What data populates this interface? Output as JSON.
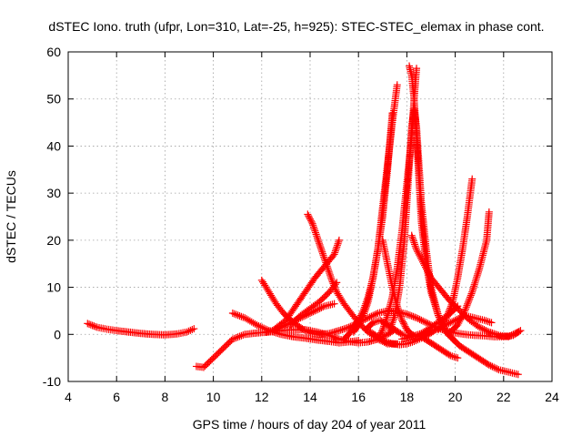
{
  "chart_data": {
    "type": "scatter",
    "title": "dSTEC Iono. truth (ufpr, Lon=310, Lat=-25, h=925): STEC-STEC_elemax in phase cont.",
    "xlabel": "GPS time / hours of day 204 of year 2011",
    "ylabel": "dSTEC  / TECUs",
    "xlim": [
      4,
      24
    ],
    "ylim": [
      -10,
      60
    ],
    "xticks": [
      "4",
      "6",
      "8",
      "10",
      "12",
      "14",
      "16",
      "18",
      "20",
      "22",
      "24"
    ],
    "yticks": [
      "-10",
      "0",
      "10",
      "20",
      "30",
      "40",
      "50",
      "60"
    ],
    "grid": true,
    "marker": "+",
    "color": "#ff0000",
    "series": [
      {
        "x": [
          4.8,
          5.2,
          5.6,
          6.0,
          6.5,
          7.0,
          7.5,
          8.0,
          8.5,
          8.9,
          9.2
        ],
        "y": [
          2.3,
          1.5,
          1.1,
          0.8,
          0.5,
          0.2,
          0.0,
          -0.1,
          0.1,
          0.5,
          1.2
        ]
      },
      {
        "x": [
          9.3,
          9.6,
          10.0,
          10.4,
          10.8,
          11.3,
          11.8,
          12.3,
          12.8,
          13.3,
          13.8,
          14.3,
          14.8,
          15.2,
          15.6,
          16.0,
          16.4,
          16.8,
          17.2,
          17.5
        ],
        "y": [
          -6.8,
          -7.0,
          -5.0,
          -3.0,
          -1.0,
          0.0,
          0.3,
          0.5,
          0.8,
          1.0,
          1.0,
          0.5,
          -0.2,
          -1.0,
          -1.5,
          -1.8,
          -1.6,
          -1.0,
          0.0,
          1.0
        ]
      },
      {
        "x": [
          10.8,
          11.3,
          11.8,
          12.3,
          12.8,
          13.3,
          13.8,
          14.3,
          14.8,
          15.2,
          15.6,
          16.0
        ],
        "y": [
          4.5,
          3.5,
          2.0,
          0.8,
          0.0,
          -0.5,
          -0.8,
          -1.2,
          -1.5,
          -1.8,
          -1.6,
          -1.3
        ]
      },
      {
        "x": [
          12.0,
          12.3,
          12.6,
          12.9,
          13.2,
          13.5,
          13.8,
          14.1,
          14.4,
          14.8,
          15.2,
          15.6,
          16.0,
          16.4,
          16.8,
          17.2,
          17.6,
          18.0,
          18.4,
          18.8,
          19.2,
          19.6,
          20.0,
          20.4,
          20.8,
          21.2,
          21.6,
          22.0,
          22.4,
          22.7
        ],
        "y": [
          11.5,
          9.0,
          6.5,
          4.5,
          3.0,
          1.8,
          0.8,
          0.2,
          0.0,
          0.2,
          0.8,
          1.5,
          2.5,
          3.5,
          4.5,
          5.0,
          4.8,
          4.3,
          3.5,
          2.5,
          1.5,
          0.8,
          0.3,
          0.0,
          -0.2,
          -0.3,
          -0.5,
          -0.5,
          -0.2,
          0.8
        ]
      },
      {
        "x": [
          12.2,
          12.6,
          13.0,
          13.4,
          13.8,
          14.2,
          14.6,
          15.0
        ],
        "y": [
          0.5,
          1.0,
          2.0,
          3.0,
          4.0,
          5.0,
          6.0,
          6.5
        ]
      },
      {
        "x": [
          12.5,
          13.0,
          13.4,
          13.8,
          14.2,
          14.6,
          15.0,
          15.2
        ],
        "y": [
          1.0,
          3.0,
          6.0,
          9.0,
          12.0,
          14.5,
          17.0,
          20.0
        ]
      },
      {
        "x": [
          13.2,
          13.6,
          14.0,
          14.4,
          14.8,
          15.1
        ],
        "y": [
          2.0,
          4.0,
          5.5,
          7.0,
          9.0,
          11.0
        ]
      },
      {
        "x": [
          13.9,
          14.1,
          14.3,
          14.5,
          14.7,
          14.9,
          15.1,
          15.4,
          15.7,
          16.0,
          16.4,
          16.8,
          17.2,
          17.6
        ],
        "y": [
          25.5,
          23.5,
          20.5,
          17.5,
          14.5,
          11.5,
          9.0,
          6.5,
          4.5,
          2.5,
          0.5,
          -1.0,
          -2.0,
          -2.0
        ]
      },
      {
        "x": [
          15.8,
          16.0,
          16.2,
          16.4,
          16.6,
          16.8,
          17.0,
          17.2,
          17.4,
          17.6
        ],
        "y": [
          0.5,
          2.0,
          4.0,
          7.0,
          12.0,
          18.0,
          27.0,
          36.0,
          45.0,
          53.0
        ]
      },
      {
        "x": [
          15.4,
          15.6,
          15.8,
          16.0,
          16.2,
          16.4,
          16.6,
          16.8,
          17.0,
          17.2,
          17.4
        ],
        "y": [
          -1.0,
          0.0,
          1.5,
          3.0,
          5.0,
          8.0,
          12.0,
          18.0,
          25.0,
          35.0,
          47.0
        ]
      },
      {
        "x": [
          16.3,
          16.6,
          16.9,
          17.2,
          17.5,
          17.8,
          18.1,
          18.4,
          18.7,
          19.0
        ],
        "y": [
          1.0,
          2.5,
          3.0,
          2.0,
          1.0,
          0.0,
          -0.5,
          -0.5,
          0.0,
          1.0
        ]
      },
      {
        "x": [
          16.5,
          16.8,
          17.1,
          17.4,
          17.7,
          18.0,
          18.3,
          18.6,
          18.9,
          19.2,
          19.6,
          20.0,
          20.4,
          20.8,
          21.2,
          21.5
        ],
        "y": [
          0.5,
          -0.5,
          -1.5,
          -2.0,
          -2.2,
          -2.0,
          -1.5,
          -0.8,
          0.0,
          1.0,
          2.0,
          3.0,
          4.0,
          3.5,
          3.0,
          2.5
        ]
      },
      {
        "x": [
          17.0,
          17.2,
          17.4,
          17.6,
          17.8,
          18.0,
          18.2,
          18.4
        ],
        "y": [
          20.0,
          15.0,
          10.0,
          6.0,
          3.0,
          1.0,
          0.0,
          -0.5
        ]
      },
      {
        "x": [
          17.3,
          17.5,
          17.7,
          17.9,
          18.0,
          18.1,
          18.2,
          18.3,
          18.4,
          18.5,
          18.6,
          18.8,
          19.0,
          19.3,
          19.6,
          20.0
        ],
        "y": [
          1.0,
          4.0,
          10.0,
          20.0,
          28.0,
          36.0,
          44.0,
          48.0,
          44.0,
          36.0,
          28.0,
          18.0,
          10.0,
          4.0,
          0.5,
          -1.5
        ]
      },
      {
        "x": [
          18.1,
          18.2,
          18.3,
          18.4,
          18.5,
          18.6,
          18.8,
          19.0,
          19.3,
          19.6,
          19.9,
          20.2,
          20.5,
          20.8,
          21.1,
          21.4,
          21.8,
          22.2,
          22.6
        ],
        "y": [
          57.0,
          55.0,
          50.0,
          42.0,
          33.0,
          24.0,
          15.0,
          9.0,
          4.0,
          1.0,
          -1.0,
          -2.5,
          -3.5,
          -4.5,
          -5.5,
          -6.5,
          -7.5,
          -8.0,
          -8.5
        ]
      },
      {
        "x": [
          18.4,
          18.3,
          18.2,
          18.0,
          17.8,
          17.6,
          17.4,
          17.2,
          17.0,
          16.8
        ],
        "y": [
          56.5,
          50.0,
          42.0,
          32.0,
          22.0,
          14.0,
          8.0,
          4.0,
          1.0,
          -1.0
        ]
      },
      {
        "x": [
          18.2,
          18.4,
          18.7,
          19.0,
          19.4,
          19.8,
          20.2,
          20.6,
          21.0,
          21.4,
          21.8,
          22.2,
          22.6
        ],
        "y": [
          21.0,
          18.0,
          15.0,
          12.0,
          9.5,
          7.0,
          5.0,
          3.0,
          1.5,
          0.5,
          -0.2,
          -0.5,
          0.5
        ]
      },
      {
        "x": [
          17.8,
          18.2,
          18.6,
          19.0,
          19.4,
          19.8,
          20.1
        ],
        "y": [
          -1.0,
          -0.5,
          0.2,
          1.5,
          3.0,
          4.5,
          6.0
        ]
      },
      {
        "x": [
          18.6,
          18.9,
          19.2,
          19.5,
          19.8,
          20.1
        ],
        "y": [
          -0.5,
          -1.5,
          -2.5,
          -3.5,
          -4.5,
          -5.0
        ]
      },
      {
        "x": [
          19.3,
          19.6,
          19.9,
          20.1,
          20.3,
          20.5,
          20.7
        ],
        "y": [
          1.0,
          3.0,
          7.0,
          12.0,
          18.0,
          25.0,
          33.0
        ]
      },
      {
        "x": [
          19.8,
          20.1,
          20.4,
          20.7,
          21.0,
          21.3,
          21.4
        ],
        "y": [
          0.5,
          2.0,
          5.0,
          9.0,
          14.0,
          20.0,
          26.0
        ]
      }
    ]
  }
}
